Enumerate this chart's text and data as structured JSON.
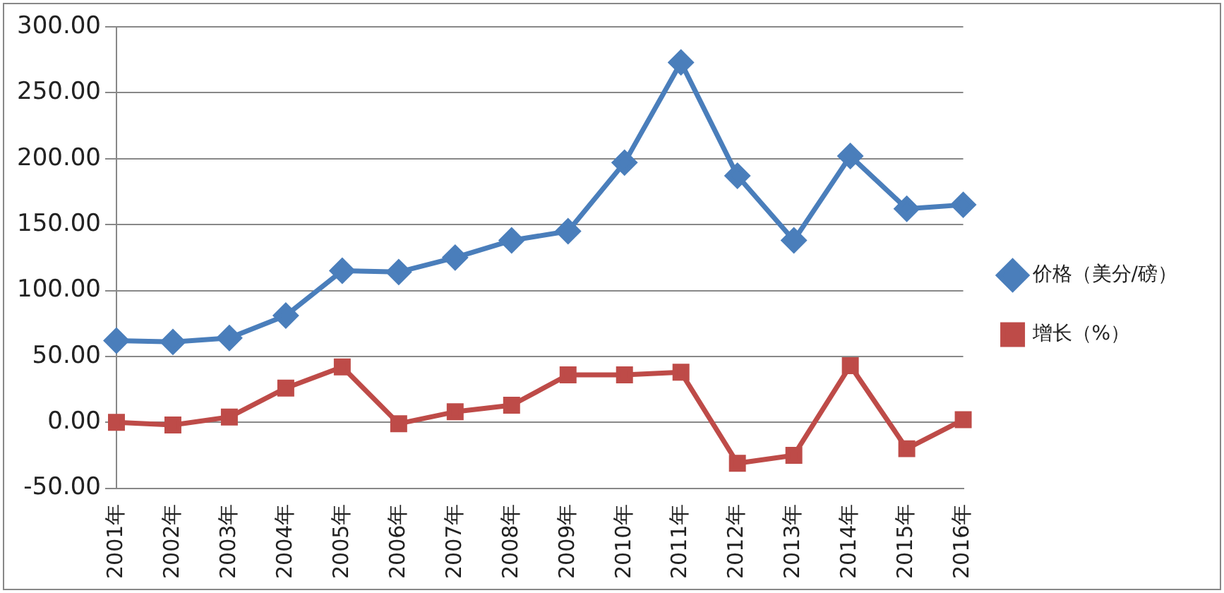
{
  "chart_data": {
    "type": "line",
    "categories": [
      "2001年",
      "2002年",
      "2003年",
      "2004年",
      "2005年",
      "2006年",
      "2007年",
      "2008年",
      "2009年",
      "2010年",
      "2011年",
      "2012年",
      "2013年",
      "2014年",
      "2015年",
      "2016年"
    ],
    "series": [
      {
        "name": "价格（美分/磅）",
        "color": "#4a7ebb",
        "marker": "diamond",
        "values": [
          62,
          61,
          64,
          81,
          115,
          114,
          125,
          138,
          145,
          197,
          273,
          187,
          138,
          202,
          162,
          165
        ]
      },
      {
        "name": "增长（%）",
        "color": "#be4b48",
        "marker": "square",
        "values": [
          0,
          -2,
          4,
          26,
          42,
          -1,
          8,
          13,
          36,
          36,
          38,
          -31,
          -25,
          43,
          -20,
          2
        ]
      }
    ],
    "ylim": [
      -50,
      300
    ],
    "yticks": [
      {
        "value": -50,
        "label": "-50.00"
      },
      {
        "value": 0,
        "label": "0.00"
      },
      {
        "value": 50,
        "label": "50.00"
      },
      {
        "value": 100,
        "label": "100.00"
      },
      {
        "value": 150,
        "label": "150.00"
      },
      {
        "value": 200,
        "label": "200.00"
      },
      {
        "value": 250,
        "label": "250.00"
      },
      {
        "value": 300,
        "label": "300.00"
      }
    ],
    "grid": "y",
    "legend": "right",
    "line_style": "solid"
  }
}
